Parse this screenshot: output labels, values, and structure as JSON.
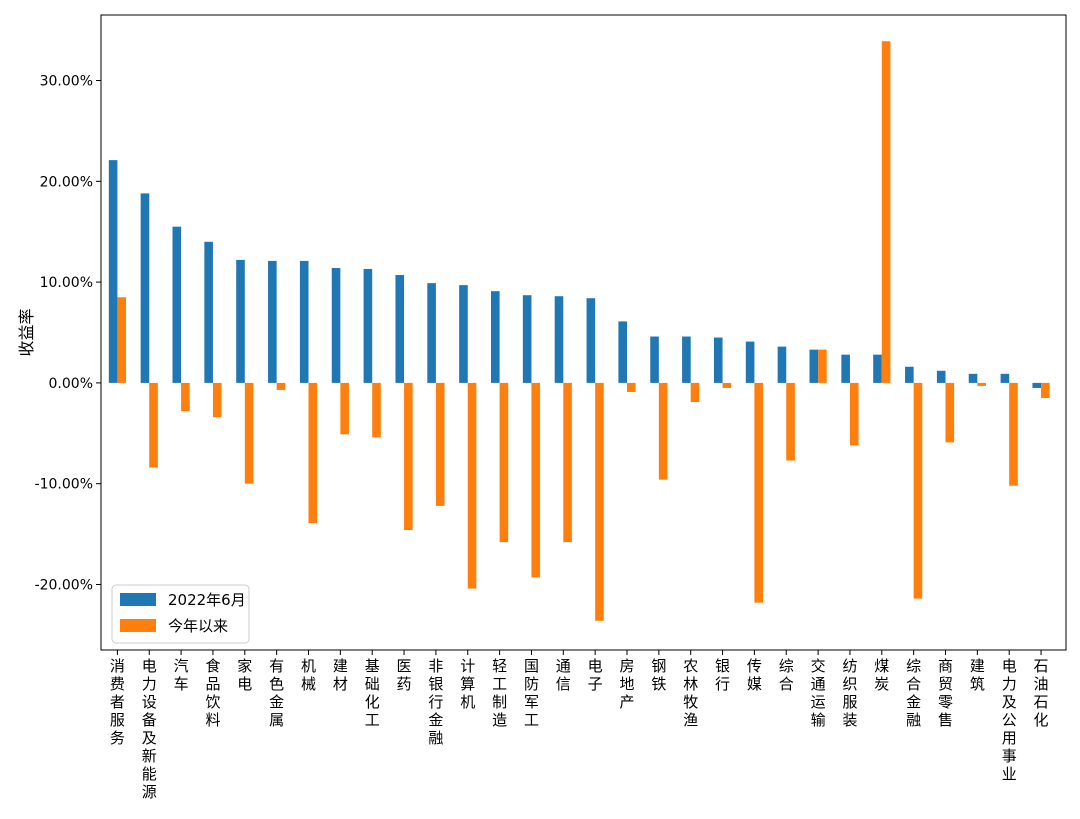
{
  "chart_data": {
    "type": "bar",
    "ylabel": "收益率",
    "xlabel": "",
    "ylim": [
      -26.5,
      36.5
    ],
    "yticks": [
      -20,
      -10,
      0,
      10,
      20,
      30
    ],
    "ytick_labels": [
      "-20.00%",
      "-10.00%",
      "0.00%",
      "10.00%",
      "20.00%",
      "30.00%"
    ],
    "categories": [
      "消费者服务",
      "电力设备及新能源",
      "汽车",
      "食品饮料",
      "家电",
      "有色金属",
      "机械",
      "建材",
      "基础化工",
      "医药",
      "非银行金融",
      "计算机",
      "轻工制造",
      "国防军工",
      "通信",
      "电子",
      "房地产",
      "钢铁",
      "农林牧渔",
      "银行",
      "传媒",
      "综合",
      "交通运输",
      "纺织服装",
      "煤炭",
      "综合金融",
      "商贸零售",
      "建筑",
      "电力及公用事业",
      "石油石化"
    ],
    "series": [
      {
        "name": "2022年6月",
        "color": "#1f77b4",
        "values": [
          22.1,
          18.8,
          15.5,
          14.0,
          12.2,
          12.1,
          12.1,
          11.4,
          11.3,
          10.7,
          9.9,
          9.7,
          9.1,
          8.7,
          8.6,
          8.4,
          6.1,
          4.6,
          4.6,
          4.5,
          4.1,
          3.6,
          3.3,
          2.8,
          2.8,
          1.6,
          1.2,
          0.9,
          0.9,
          -0.5
        ]
      },
      {
        "name": "今年以来",
        "color": "#ff7f0e",
        "values": [
          8.5,
          -8.4,
          -2.8,
          -3.4,
          -10.0,
          -0.7,
          -13.9,
          -5.1,
          -5.4,
          -14.6,
          -12.2,
          -20.4,
          -15.8,
          -19.3,
          -15.8,
          -23.6,
          -0.9,
          -9.6,
          -1.9,
          -0.5,
          -21.8,
          -7.7,
          3.3,
          -6.2,
          33.9,
          -21.4,
          -5.9,
          -0.3,
          -10.2,
          -1.5
        ]
      }
    ],
    "legend_position": "lower-left",
    "grid": false
  }
}
